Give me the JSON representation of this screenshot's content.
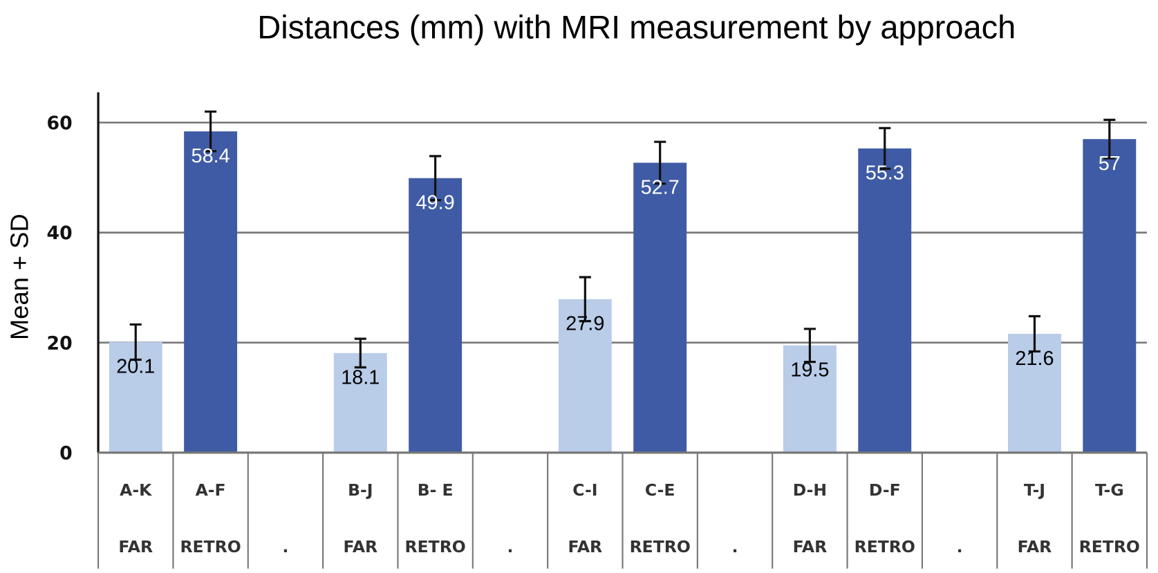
{
  "chart_data": {
    "type": "bar",
    "title": "Distances (mm) with MRI measurement by approach",
    "xlabel": "",
    "ylabel": "Mean + SD",
    "ylim": [
      0,
      60
    ],
    "yticks": [
      "0",
      "20",
      "40",
      "60"
    ],
    "grid": true,
    "categories": [
      {
        "distance": "A-K",
        "approach": "FAR"
      },
      {
        "distance": "A-F",
        "approach": "RETRO"
      },
      {
        "distance": "",
        "approach": "."
      },
      {
        "distance": "B-J",
        "approach": "FAR"
      },
      {
        "distance": "B- E",
        "approach": "RETRO"
      },
      {
        "distance": "",
        "approach": "."
      },
      {
        "distance": "C-I",
        "approach": "FAR"
      },
      {
        "distance": "C-E",
        "approach": "RETRO"
      },
      {
        "distance": "",
        "approach": "."
      },
      {
        "distance": "D-H",
        "approach": "FAR"
      },
      {
        "distance": "D-F",
        "approach": "RETRO"
      },
      {
        "distance": "",
        "approach": "."
      },
      {
        "distance": "T-J",
        "approach": "FAR"
      },
      {
        "distance": "T-G",
        "approach": "RETRO"
      }
    ],
    "values": [
      20.1,
      58.4,
      null,
      18.1,
      49.9,
      null,
      27.9,
      52.7,
      null,
      19.5,
      55.3,
      null,
      21.6,
      57
    ],
    "value_labels": [
      "20.1",
      "58.4",
      "",
      "18.1",
      "49.9",
      "",
      "27.9",
      "52.7",
      "",
      "19.5",
      "55.3",
      "",
      "21.6",
      "57"
    ],
    "sd": [
      3.2,
      3.6,
      null,
      2.6,
      4.0,
      null,
      4.0,
      3.8,
      null,
      3.0,
      3.7,
      null,
      3.2,
      3.5
    ],
    "colors": {
      "FAR": "#b9cce8",
      "RETRO": "#3f5ba5",
      "FAR_label": "#000000",
      "RETRO_label": "#ffffff"
    }
  }
}
